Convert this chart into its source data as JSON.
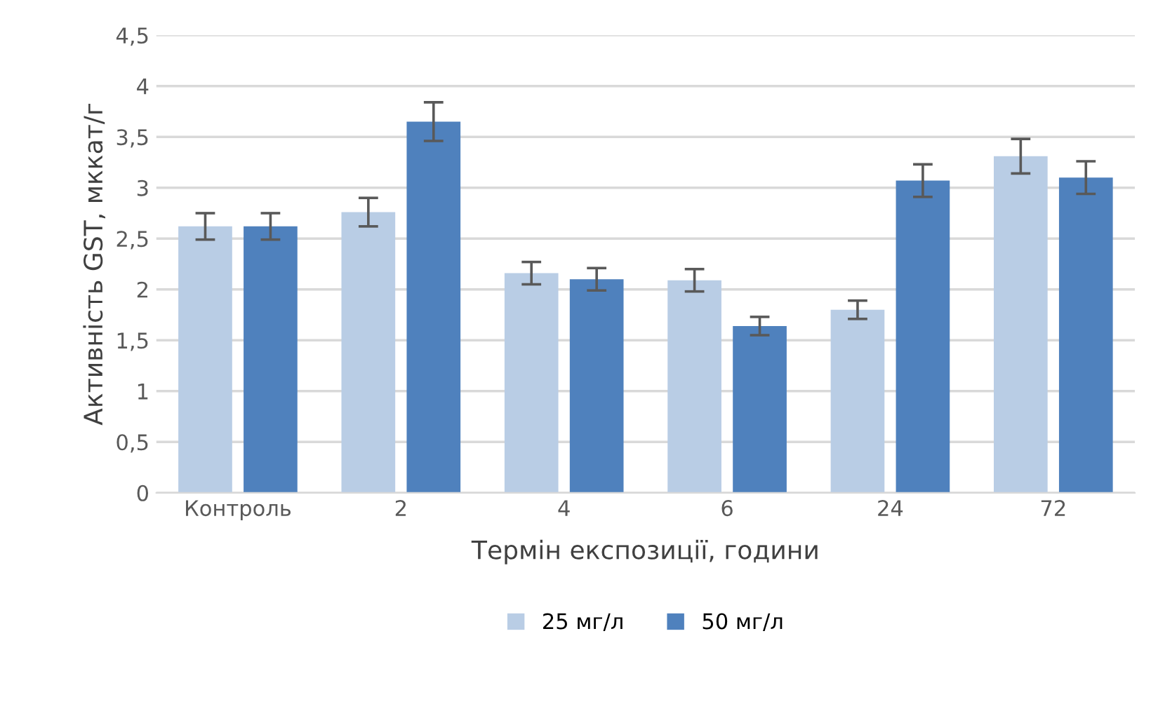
{
  "chart_data": {
    "type": "bar",
    "xlabel": "Термін експозиції, години",
    "ylabel": "Активність GST, мккат/г",
    "categories": [
      "Контроль",
      "2",
      "4",
      "6",
      "24",
      "72"
    ],
    "series": [
      {
        "name": "25 мг/л",
        "color": "#b9cde5",
        "values": [
          2.62,
          2.76,
          2.16,
          2.09,
          1.8,
          3.31
        ],
        "errors": [
          0.13,
          0.14,
          0.11,
          0.11,
          0.09,
          0.17
        ]
      },
      {
        "name": "50 мг/л",
        "color": "#4f81bd",
        "values": [
          2.62,
          3.65,
          2.1,
          1.64,
          3.07,
          3.1
        ],
        "errors": [
          0.13,
          0.19,
          0.11,
          0.09,
          0.16,
          0.16
        ]
      }
    ],
    "ylim": [
      0,
      4.5
    ],
    "yticks": [
      0,
      {
        "value": 0.5,
        "label": "0,5"
      },
      1,
      {
        "value": 1.5,
        "label": "1,5"
      },
      2,
      {
        "value": 2.5,
        "label": "2,5"
      },
      3,
      {
        "value": 3.5,
        "label": "3,5"
      },
      4,
      {
        "value": 4.5,
        "label": "4,5"
      }
    ],
    "grid": "y",
    "legend": "bottom"
  }
}
